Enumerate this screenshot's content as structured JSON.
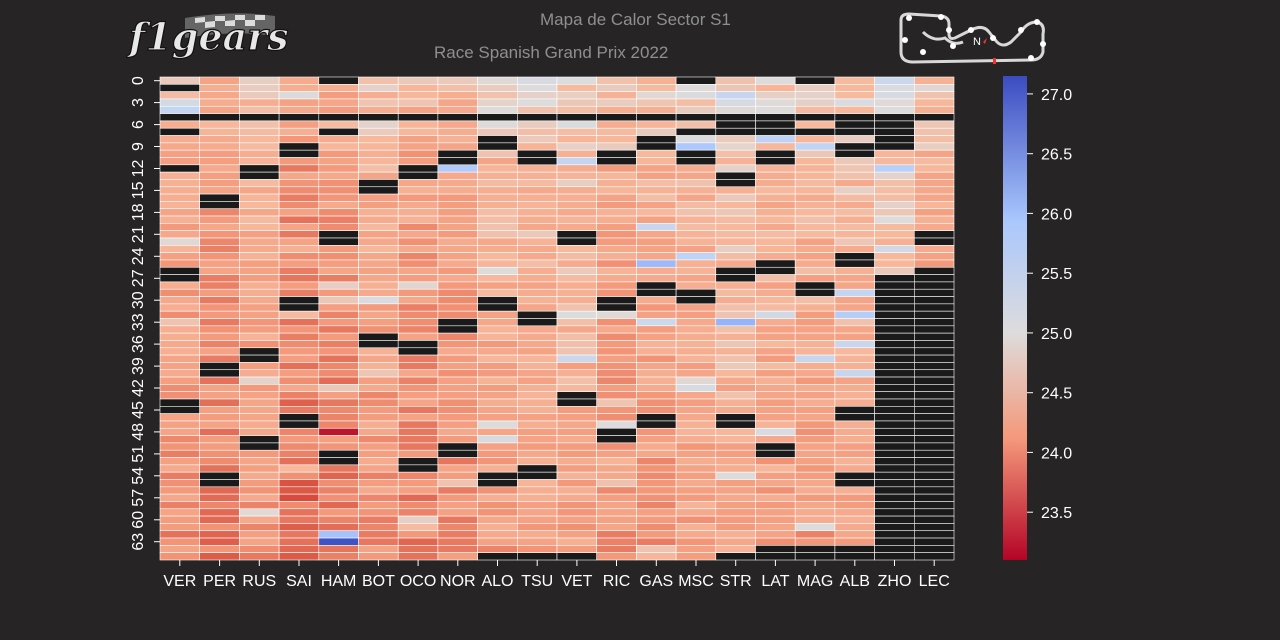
{
  "header": {
    "title": "Mapa de Calor Sector S1",
    "subtitle": "Race Spanish Grand Prix 2022",
    "logo_text": "f1gears",
    "track_compass": "N"
  },
  "colors": {
    "background": "#272425",
    "missing_cell": "#1a1a1a",
    "cell_border": "#ffffff",
    "cmap": [
      "#b40426",
      "#f7b89c",
      "#dddcdc",
      "#aac7fd",
      "#3b4cc0"
    ]
  },
  "chart_data": {
    "type": "heatmap",
    "title": "Mapa de Calor Sector S1",
    "subtitle": "Race Spanish Grand Prix 2022",
    "x_categories": [
      "VER",
      "PER",
      "RUS",
      "SAI",
      "HAM",
      "BOT",
      "OCO",
      "NOR",
      "ALO",
      "TSU",
      "VET",
      "RIC",
      "GAS",
      "MSC",
      "STR",
      "LAT",
      "MAG",
      "ALB",
      "ZHO",
      "LEC"
    ],
    "y_tick_labels": [
      "0",
      "3",
      "6",
      "9",
      "12",
      "15",
      "18",
      "21",
      "24",
      "27",
      "30",
      "33",
      "36",
      "39",
      "42",
      "45",
      "48",
      "51",
      "54",
      "57",
      "60",
      "63"
    ],
    "y_tick_step": 3,
    "n_laps": 66,
    "colorbar": {
      "vmin": 23.1,
      "vmax": 27.15,
      "ticks": [
        "23.5",
        "24.0",
        "24.5",
        "25.0",
        "25.5",
        "26.0",
        "26.5",
        "27.0"
      ]
    },
    "driver_base_time": [
      24.5,
      24.35,
      24.55,
      24.2,
      24.3,
      24.55,
      24.4,
      24.45,
      24.65,
      24.7,
      24.75,
      24.5,
      24.55,
      24.7,
      24.8,
      24.7,
      24.65,
      24.75,
      24.9,
      24.55
    ],
    "notable_values": [
      {
        "driver": "HAM",
        "lap": 49,
        "value": 23.2
      },
      {
        "driver": "HAM",
        "lap": 64,
        "value": 27.1
      },
      {
        "driver": "HAM",
        "lap": 63,
        "value": 26.0
      },
      {
        "driver": "GAS",
        "lap": 26,
        "value": 26.1
      },
      {
        "driver": "STR",
        "lap": 34,
        "value": 26.2
      },
      {
        "driver": "MSC",
        "lap": 10,
        "value": 25.9
      },
      {
        "driver": "SAI",
        "lap": 58,
        "value": 23.5
      },
      {
        "driver": "NOR",
        "lap": 13,
        "value": 25.8
      },
      {
        "driver": "ALB",
        "lap": 33,
        "value": 25.7
      }
    ],
    "missing_cells": {
      "VER": [
        2,
        6,
        8,
        13,
        27,
        28,
        45,
        46
      ],
      "PER": [
        6,
        17,
        18,
        40,
        41,
        55,
        56
      ],
      "RUS": [
        6,
        13,
        14,
        38,
        39,
        50,
        51
      ],
      "SAI": [
        6,
        10,
        11,
        31,
        32,
        47,
        48
      ],
      "HAM": [
        1,
        6,
        8,
        22,
        23,
        52,
        53
      ],
      "BOT": [
        6,
        15,
        16,
        36,
        37
      ],
      "OCO": [
        6,
        13,
        14,
        37,
        38,
        53,
        54
      ],
      "NOR": [
        6,
        11,
        12,
        34,
        35,
        51,
        52
      ],
      "ALO": [
        6,
        9,
        10,
        31,
        32,
        55,
        56,
        66
      ],
      "TSU": [
        6,
        11,
        12,
        33,
        34,
        54,
        55,
        66
      ],
      "VET": [
        6,
        22,
        23,
        44,
        45,
        66
      ],
      "RIC": [
        6,
        11,
        12,
        31,
        32,
        49,
        50
      ],
      "GAS": [
        6,
        9,
        10,
        29,
        30,
        47,
        48
      ],
      "MSC": [
        1,
        6,
        8,
        11,
        12,
        30,
        31
      ],
      "STR": [
        6,
        7,
        8,
        14,
        15,
        27,
        28,
        47,
        48,
        66
      ],
      "LAT": [
        6,
        7,
        8,
        11,
        12,
        26,
        27,
        51,
        52,
        65,
        66
      ],
      "MAG": [
        1,
        6,
        8,
        29,
        30,
        65,
        66
      ],
      "ALB": [
        6,
        7,
        8,
        10,
        11,
        25,
        26,
        46,
        47,
        55,
        56,
        65,
        66
      ],
      "ZHO": [
        6,
        7,
        8,
        9,
        10,
        28,
        29,
        30,
        31,
        32,
        33,
        34,
        35,
        36,
        37,
        38,
        39,
        40,
        41,
        42,
        43,
        44,
        45,
        46,
        47,
        48,
        49,
        50,
        51,
        52,
        53,
        54,
        55,
        56,
        57,
        58,
        59,
        60,
        61,
        62,
        63,
        64,
        65,
        66
      ],
      "LEC": [
        6,
        22,
        23,
        27,
        28,
        29,
        30,
        31,
        32,
        33,
        34,
        35,
        36,
        37,
        38,
        39,
        40,
        41,
        42,
        43,
        44,
        45,
        46,
        47,
        48,
        49,
        50,
        51,
        52,
        53,
        54,
        55,
        56,
        57,
        58,
        59,
        60,
        61,
        62,
        63,
        64,
        65,
        66
      ]
    }
  }
}
